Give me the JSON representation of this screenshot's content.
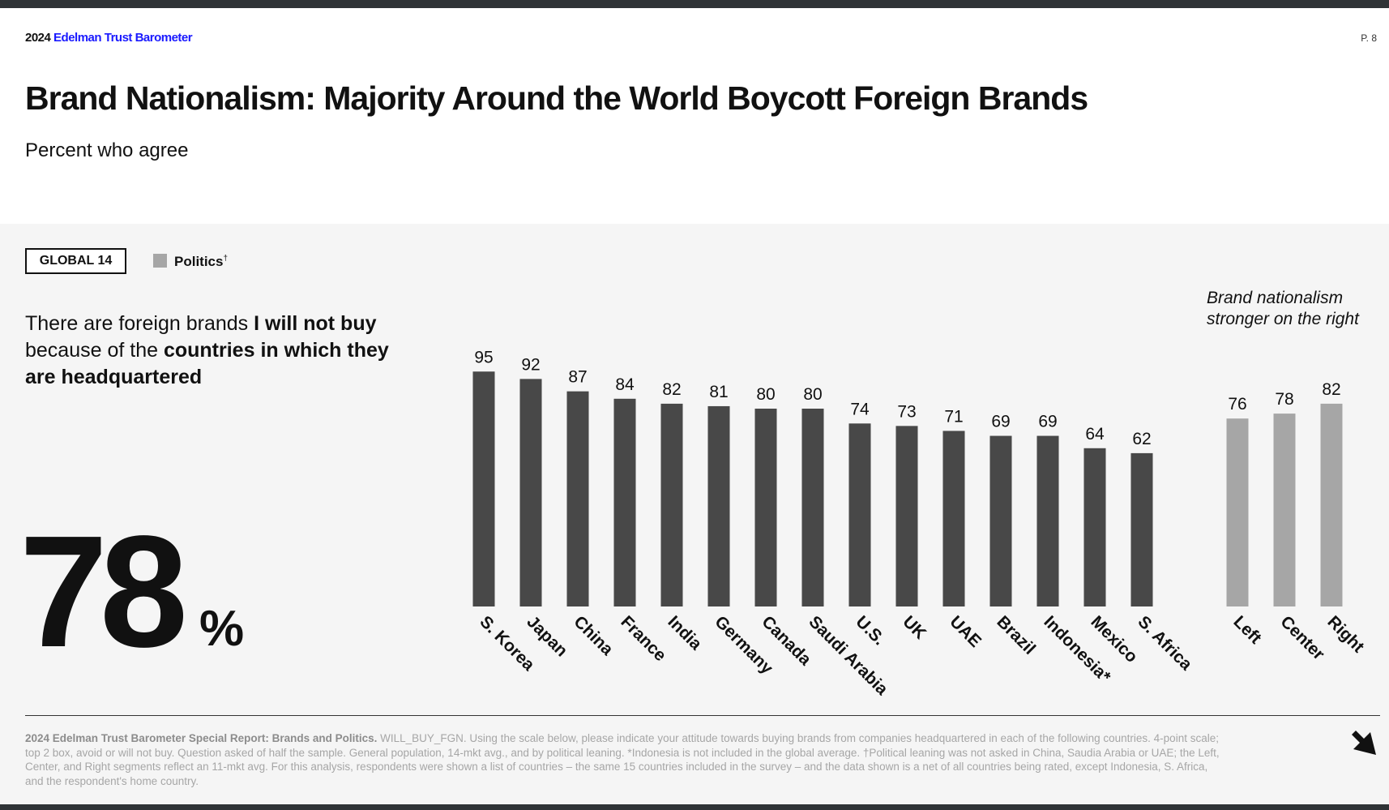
{
  "header": {
    "brand_year": "2024",
    "brand_name": "Edelman Trust Barometer",
    "page": "P. 8",
    "title": "Brand Nationalism: Majority Around the World Boycott Foreign Brands",
    "subtitle": "Percent who agree"
  },
  "legend": {
    "global_label": "GLOBAL 14",
    "politics_label": "Politics",
    "politics_mark": "†",
    "politics_color": "#a6a6a6",
    "global_color": "#484848"
  },
  "question": {
    "part1": "There are foreign brands ",
    "bold1": "I will not buy",
    "part2": " because of the ",
    "bold2": "countries in which they are headquartered"
  },
  "global_value": "78",
  "global_unit": "%",
  "note": {
    "line1": "Brand nationalism",
    "line2": "stronger on the right"
  },
  "chart_data": {
    "type": "bar",
    "ylim": [
      0,
      100
    ],
    "grid": false,
    "series": [
      {
        "name": "Countries",
        "color": "#484848",
        "categories": [
          "S. Korea",
          "Japan",
          "China",
          "France",
          "India",
          "Germany",
          "Canada",
          "Saudi Arabia",
          "U.S.",
          "UK",
          "UAE",
          "Brazil",
          "Indonesia*",
          "Mexico",
          "S. Africa"
        ],
        "values": [
          95,
          92,
          87,
          84,
          82,
          81,
          80,
          80,
          74,
          73,
          71,
          69,
          69,
          64,
          62
        ]
      },
      {
        "name": "Politics",
        "color": "#a6a6a6",
        "categories": [
          "Left",
          "Center",
          "Right"
        ],
        "values": [
          76,
          78,
          82
        ]
      }
    ]
  },
  "footnote": {
    "bold": "2024 Edelman Trust Barometer Special Report: Brands and Politics.",
    "text": " WILL_BUY_FGN. Using the scale below, please indicate your attitude towards buying brands from companies headquartered in each of the following countries. 4-point scale; top 2 box, avoid or will not buy. Question asked of half the sample. General population, 14-mkt avg., and by political leaning. *Indonesia is not included in the global average. †Political leaning was not asked in China, Saudia Arabia or UAE; the Left, Center, and Right segments reflect an 11-mkt avg. For this analysis, respondents were shown a list of countries – the same 15 countries included in the survey – and the data shown is a net of all countries being rated, except Indonesia, S. Africa, and the respondent's home country."
  },
  "icons": {
    "next": "arrow-down-right-icon"
  }
}
